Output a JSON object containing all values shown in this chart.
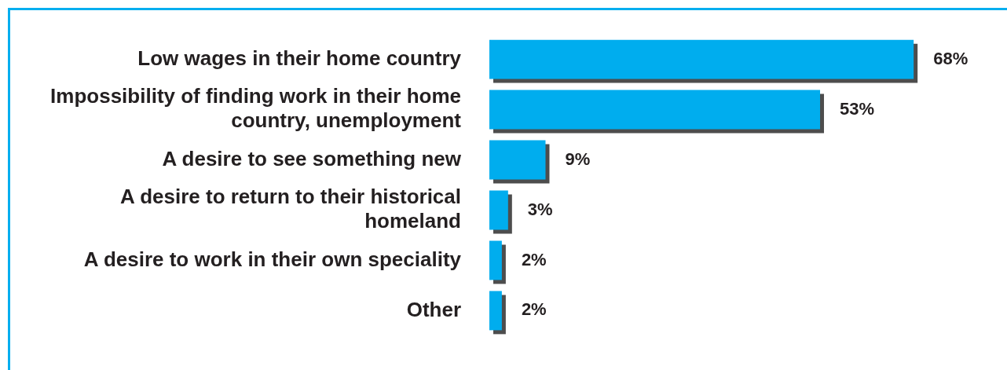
{
  "chart_data": {
    "type": "bar",
    "orientation": "horizontal",
    "categories": [
      "Low wages in their home country",
      "Impossibility of finding work in their home country, unemployment",
      "A desire to see something new",
      "A desire to return to their historical homeland",
      "A desire to work in their own speciality",
      "Other"
    ],
    "values": [
      68,
      53,
      9,
      3,
      2,
      2
    ],
    "value_labels": [
      "68%",
      "53%",
      "9%",
      "3%",
      "2%",
      "2%"
    ],
    "color": "#00adee"
  }
}
